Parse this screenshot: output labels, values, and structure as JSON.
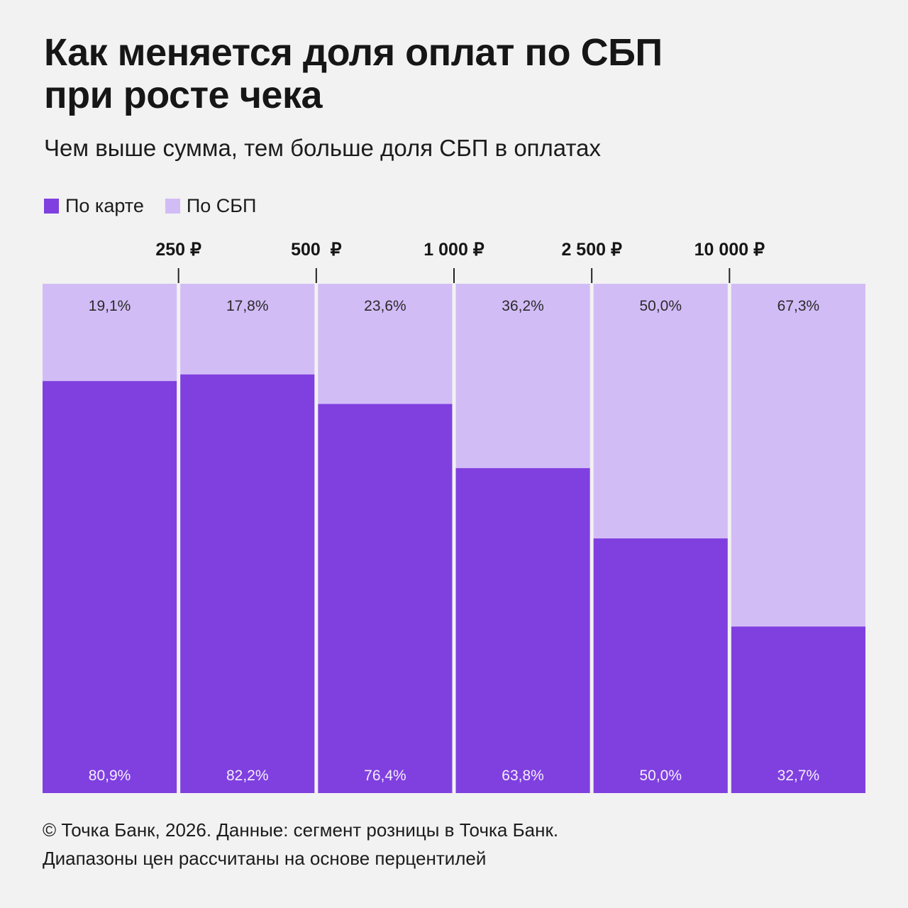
{
  "header": {
    "title_line1": "Как меняется доля оплат по СБП",
    "title_line2": "при росте чека",
    "subtitle": "Чем выше сумма, тем больше доля СБП в оплатах"
  },
  "legend": [
    {
      "label": "По карте",
      "color": "#8040e0"
    },
    {
      "label": "По СБП",
      "color": "#d2bcf6"
    }
  ],
  "footer": {
    "line1": "© Точка Банк, 2026. Данные: сегмент розницы в Точка Банк.",
    "line2": "Диапазоны цен рассчитаны на основе перцентилей"
  },
  "chart_data": {
    "type": "bar",
    "stacked": true,
    "percent": true,
    "title": "Как меняется доля оплат по СБП при росте чека",
    "subtitle": "Чем выше сумма, тем больше доля СБП в оплатах",
    "boundaries": [
      "250 ₽",
      "500  ₽",
      "1 000 ₽",
      "2 500 ₽",
      "10 000 ₽"
    ],
    "bins": [
      "",
      "",
      "",
      "",
      "",
      ""
    ],
    "series": [
      {
        "name": "По карте",
        "color": "#8040e0",
        "values": [
          80.9,
          82.2,
          76.4,
          63.8,
          50.0,
          32.7
        ],
        "labels": [
          "80,9%",
          "82,2%",
          "76,4%",
          "63,8%",
          "50,0%",
          "32,7%"
        ]
      },
      {
        "name": "По СБП",
        "color": "#d2bcf6",
        "values": [
          19.1,
          17.8,
          23.6,
          36.2,
          50.0,
          67.3
        ],
        "labels": [
          "19,1%",
          "17,8%",
          "23,6%",
          "36,2%",
          "50,0%",
          "67,3%"
        ]
      }
    ],
    "ylim": [
      0,
      100
    ],
    "grid": false,
    "legend_position": "top-left"
  }
}
